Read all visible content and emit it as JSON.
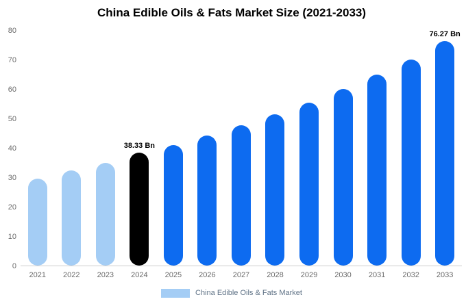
{
  "chart_data": {
    "type": "bar",
    "title": "China Edible Oils & Fats Market Size (2021-2033)",
    "categories": [
      "2021",
      "2022",
      "2023",
      "2024",
      "2025",
      "2026",
      "2027",
      "2028",
      "2029",
      "2030",
      "2031",
      "2032",
      "2033"
    ],
    "values": [
      29.6,
      32.3,
      34.8,
      38.33,
      40.9,
      44.2,
      47.6,
      51.5,
      55.4,
      60.1,
      64.9,
      70.1,
      76.27
    ],
    "unit": "Bn",
    "xlabel": "",
    "ylabel": "",
    "ylim": [
      0,
      80
    ],
    "yticks": [
      0,
      10,
      20,
      30,
      40,
      50,
      60,
      70,
      80
    ],
    "grid": false,
    "bar_colors": [
      "#a4cdf5",
      "#a4cdf5",
      "#a4cdf5",
      "#000000",
      "#0d6bf0",
      "#0d6bf0",
      "#0d6bf0",
      "#0d6bf0",
      "#0d6bf0",
      "#0d6bf0",
      "#0d6bf0",
      "#0d6bf0",
      "#0d6bf0"
    ],
    "annotations": [
      {
        "category": "2024",
        "text": "38.33 Bn"
      },
      {
        "category": "2033",
        "text": "76.27 Bn"
      }
    ],
    "legend": {
      "position": "bottom",
      "items": [
        {
          "label": "China Edible Oils & Fats Market",
          "color": "#a4cdf5"
        }
      ]
    }
  }
}
